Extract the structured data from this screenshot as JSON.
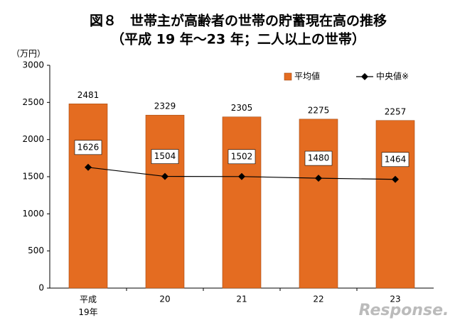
{
  "chart_data": {
    "type": "bar-line",
    "title": "図８　世帯主が高齢者の世帯の貯蓄現在高の推移",
    "subtitle": "（平成 19 年～23 年；二人以上の世帯）",
    "y_label": "（万円）",
    "categories": [
      "平成\n19年",
      "20",
      "21",
      "22",
      "23"
    ],
    "series": [
      {
        "name": "平均値",
        "type": "bar",
        "color": "#e46c21",
        "values": [
          2481,
          2329,
          2305,
          2275,
          2257
        ]
      },
      {
        "name": "中央値※",
        "type": "line",
        "color": "#000000",
        "values": [
          1626,
          1504,
          1502,
          1480,
          1464
        ]
      }
    ],
    "ylim": [
      0,
      3000
    ],
    "yticks": [
      0,
      500,
      1000,
      1500,
      2000,
      2500,
      3000
    ],
    "grid": false,
    "legend": "top-right",
    "watermark": "Response."
  }
}
